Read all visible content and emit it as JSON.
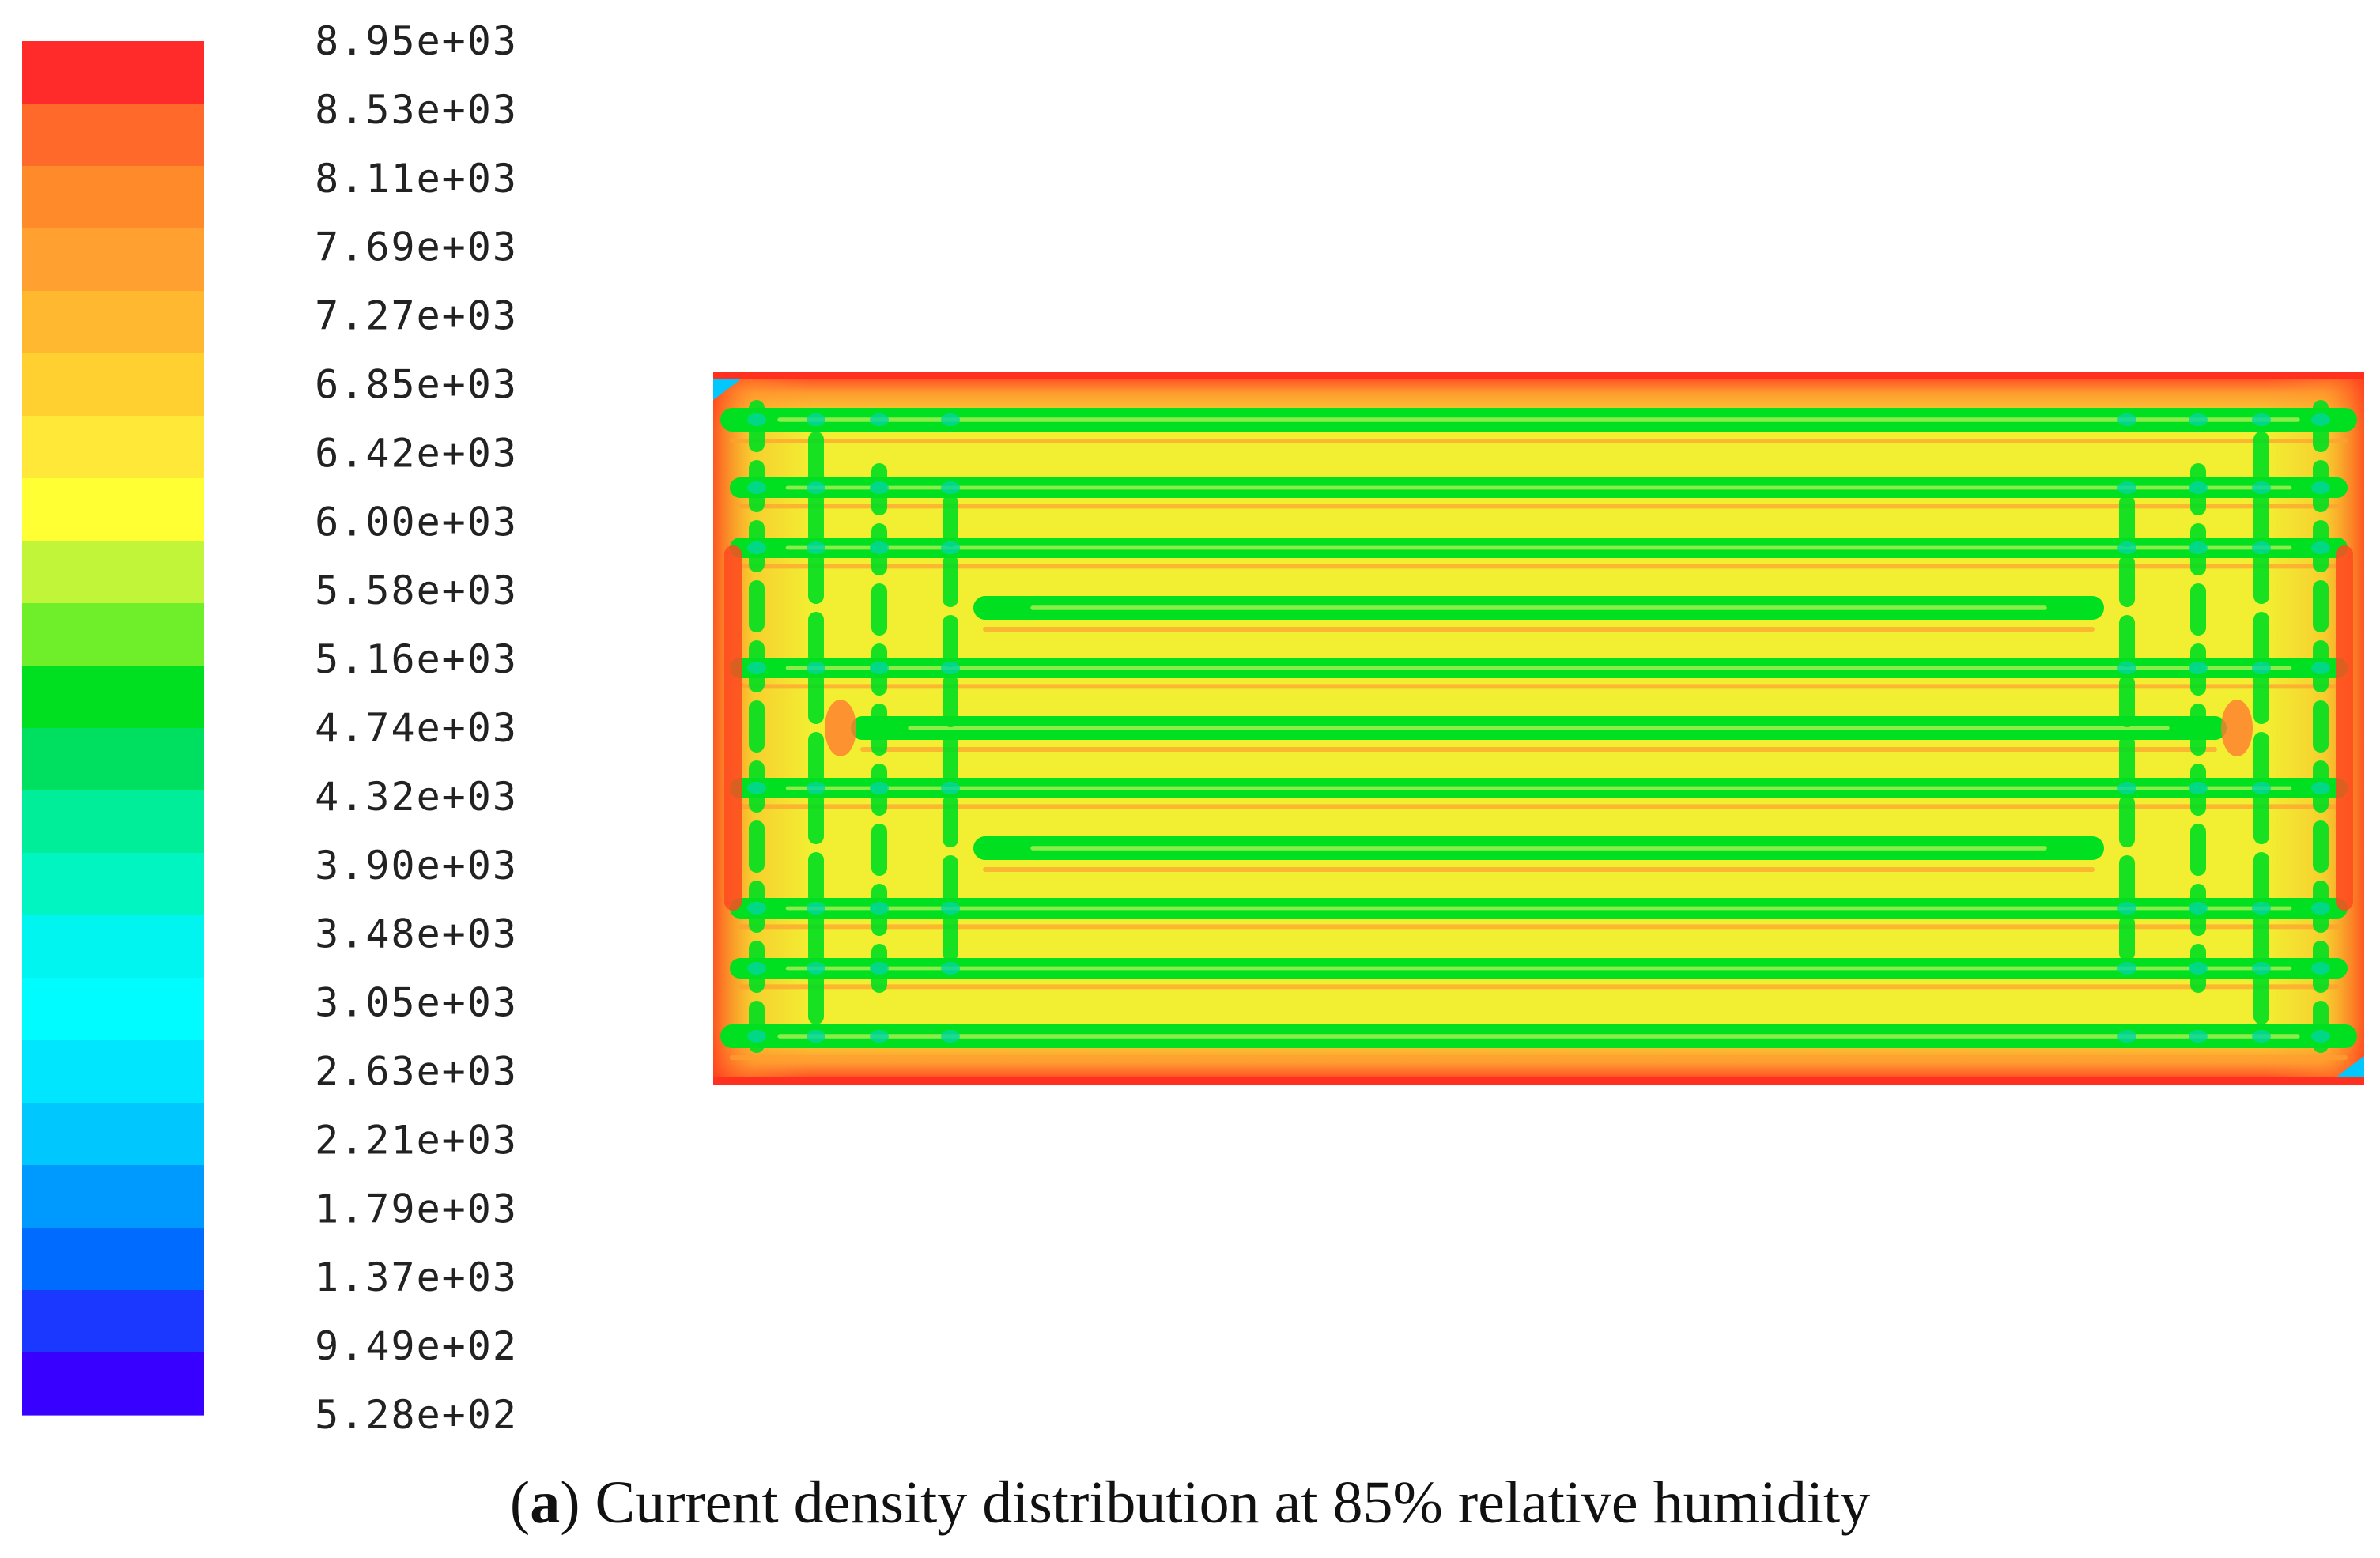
{
  "chart_data": {
    "type": "heatmap",
    "title": "",
    "colorbar": {
      "ticks": [
        "8.95e+03",
        "8.53e+03",
        "8.11e+03",
        "7.69e+03",
        "7.27e+03",
        "6.85e+03",
        "6.42e+03",
        "6.00e+03",
        "5.58e+03",
        "5.16e+03",
        "4.74e+03",
        "4.32e+03",
        "3.90e+03",
        "3.48e+03",
        "3.05e+03",
        "2.63e+03",
        "2.21e+03",
        "1.79e+03",
        "1.37e+03",
        "9.49e+02",
        "5.28e+02"
      ],
      "range": [
        528,
        8950
      ],
      "band_colors": [
        "#ff2a2a",
        "#ff6a2a",
        "#ff8a2a",
        "#ffa030",
        "#ffb830",
        "#ffd030",
        "#ffe838",
        "#ffff33",
        "#c0f53a",
        "#6eef2a",
        "#00e020",
        "#00e060",
        "#00ee99",
        "#00f5c0",
        "#00f5f0",
        "#00fcff",
        "#00e6ff",
        "#00c8ff",
        "#009aff",
        "#006cff",
        "#1a38ff",
        "#3800ff"
      ],
      "orientation": "vertical",
      "placement": "left"
    },
    "field": {
      "pattern": "serpentine flow-channel contour",
      "horizontal_green_bands": 11,
      "edge_color": "#ff3020",
      "background_color": "#f2ef32",
      "band_color": "#00e020",
      "corner_color": "#00c8ff"
    }
  },
  "caption": {
    "label": "a",
    "open": "(",
    "close": ")",
    "text": "Current density distribution at 85% relative humidity"
  }
}
